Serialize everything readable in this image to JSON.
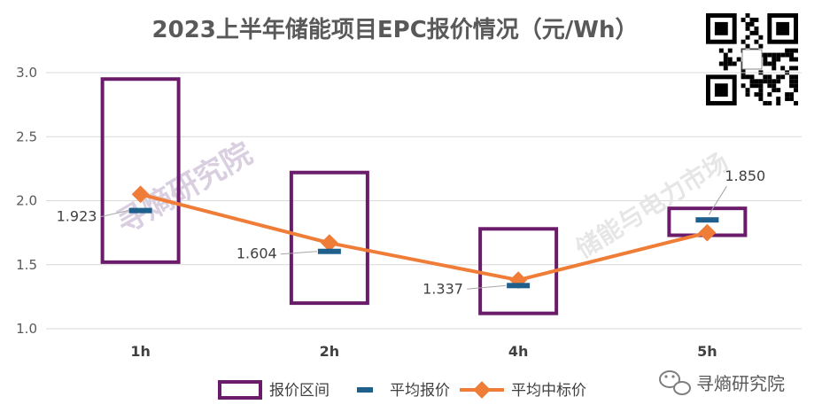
{
  "chart_data": {
    "type": "box-range-line",
    "title": "2023上半年储能项目EPC报价情况（元/Wh）",
    "categories": [
      "1h",
      "2h",
      "4h",
      "5h"
    ],
    "ylim": [
      1.0,
      3.0
    ],
    "yticks": [
      "1.0",
      "1.5",
      "2.0",
      "2.5",
      "3.0"
    ],
    "grid": true,
    "legend_position": "bottom",
    "series": [
      {
        "name": "报价区间",
        "kind": "range",
        "color": "#6a1b6a",
        "low": [
          1.52,
          1.2,
          1.12,
          1.73
        ],
        "high": [
          2.95,
          2.22,
          1.78,
          1.94
        ]
      },
      {
        "name": "平均报价",
        "kind": "marker",
        "color": "#1f5f8b",
        "values": [
          1.923,
          1.604,
          1.337,
          1.85
        ]
      },
      {
        "name": "平均中标价",
        "kind": "line",
        "color": "#ef7d37",
        "values": [
          2.05,
          1.67,
          1.38,
          1.75
        ]
      }
    ],
    "data_labels": [
      "1.923",
      "1.604",
      "1.337",
      "1.850"
    ]
  },
  "watermarks": {
    "main": "寻熵研究院",
    "secondary": "储能与电力市场"
  },
  "brand": {
    "label": "寻熵研究院"
  },
  "colors": {
    "axis_text": "#595959",
    "grid": "#d9d9d9"
  }
}
